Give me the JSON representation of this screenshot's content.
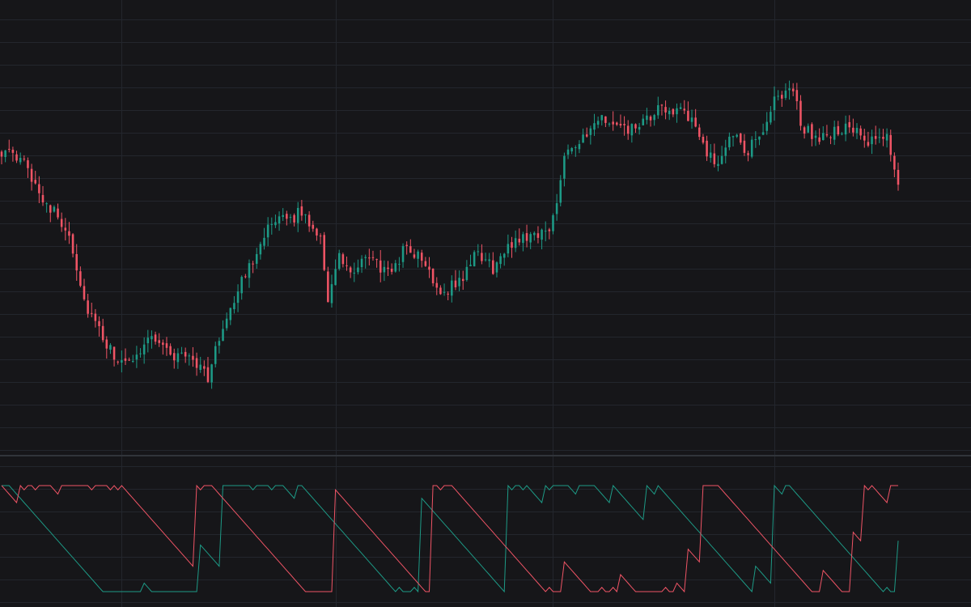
{
  "colors": {
    "background": "#161619",
    "grid": "#23262d",
    "separator": "#31343a",
    "up": "#1d9a86",
    "down": "#ef5465"
  },
  "chart_data": [
    {
      "type": "candlestick",
      "title": "",
      "xlabel": "",
      "ylabel": "",
      "grid": true,
      "ylim": [
        0,
        100
      ],
      "n_bars": 240,
      "x_gridline_bars": [
        32,
        89,
        147,
        206
      ],
      "path_waypoints": [
        [
          0,
          80
        ],
        [
          6,
          76
        ],
        [
          12,
          64
        ],
        [
          18,
          55
        ],
        [
          22,
          34
        ],
        [
          28,
          20
        ],
        [
          33,
          14
        ],
        [
          40,
          24
        ],
        [
          46,
          17
        ],
        [
          50,
          18
        ],
        [
          55,
          11
        ],
        [
          60,
          30
        ],
        [
          65,
          42
        ],
        [
          70,
          55
        ],
        [
          74,
          58
        ],
        [
          80,
          61
        ],
        [
          85,
          54
        ],
        [
          87,
          35
        ],
        [
          90,
          47
        ],
        [
          94,
          42
        ],
        [
          98,
          48
        ],
        [
          103,
          42
        ],
        [
          108,
          51
        ],
        [
          113,
          45
        ],
        [
          117,
          37
        ],
        [
          122,
          40
        ],
        [
          127,
          49
        ],
        [
          131,
          44
        ],
        [
          137,
          53
        ],
        [
          143,
          55
        ],
        [
          146,
          55
        ],
        [
          148,
          65
        ],
        [
          150,
          80
        ],
        [
          156,
          84
        ],
        [
          160,
          90
        ],
        [
          165,
          86
        ],
        [
          170,
          87
        ],
        [
          175,
          92
        ],
        [
          180,
          93
        ],
        [
          185,
          87
        ],
        [
          188,
          80
        ],
        [
          190,
          75
        ],
        [
          195,
          86
        ],
        [
          198,
          78
        ],
        [
          203,
          87
        ],
        [
          207,
          97
        ],
        [
          211,
          99
        ],
        [
          213,
          88
        ],
        [
          218,
          83
        ],
        [
          222,
          86
        ],
        [
          226,
          87
        ],
        [
          231,
          82
        ],
        [
          236,
          84
        ],
        [
          239,
          70
        ]
      ],
      "wick_extent": 3.2,
      "oscillator": {
        "ylim": [
          0,
          100
        ],
        "series": [
          {
            "color_key": "up",
            "lookback": 25
          },
          {
            "color_key": "down",
            "lookback": 25
          }
        ]
      }
    }
  ]
}
